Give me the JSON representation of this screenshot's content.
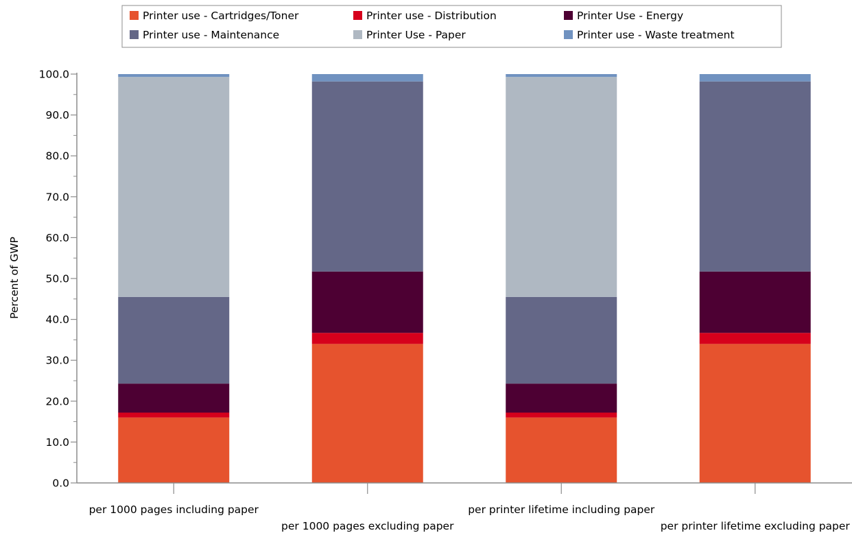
{
  "chart_data": {
    "type": "bar",
    "stacked": true,
    "ylabel": "Percent of GWP",
    "xlabel": "",
    "ylim": [
      0,
      100
    ],
    "yticks": [
      0,
      10,
      20,
      30,
      40,
      50,
      60,
      70,
      80,
      90,
      100
    ],
    "ytick_labels": [
      "0.0",
      "10.0",
      "20.0",
      "30.0",
      "40.0",
      "50.0",
      "60.0",
      "70.0",
      "80.0",
      "90.0",
      "100.0"
    ],
    "legend_position": "top",
    "grid": false,
    "categories": [
      "per 1000 pages including paper",
      "per 1000 pages excluding paper",
      "per printer lifetime including paper",
      "per printer lifetime excluding paper"
    ],
    "series": [
      {
        "name": "Printer use - Cartridges/Toner",
        "color": "#e6532e",
        "values": [
          16.0,
          34.0,
          16.0,
          34.0
        ]
      },
      {
        "name": "Printer use - Distribution",
        "color": "#d6001c",
        "values": [
          1.2,
          2.7,
          1.2,
          2.7
        ]
      },
      {
        "name": "Printer Use - Energy",
        "color": "#4d0033",
        "values": [
          7.1,
          15.0,
          7.1,
          15.0
        ]
      },
      {
        "name": "Printer use - Maintenance",
        "color": "#646787",
        "values": [
          21.2,
          46.5,
          21.2,
          46.5
        ]
      },
      {
        "name": "Printer Use - Paper",
        "color": "#afb8c2",
        "values": [
          53.8,
          0.0,
          53.8,
          0.0
        ]
      },
      {
        "name": "Printer use - Waste treatment",
        "color": "#7092c0",
        "values": [
          0.7,
          1.8,
          0.7,
          1.8
        ]
      }
    ]
  }
}
